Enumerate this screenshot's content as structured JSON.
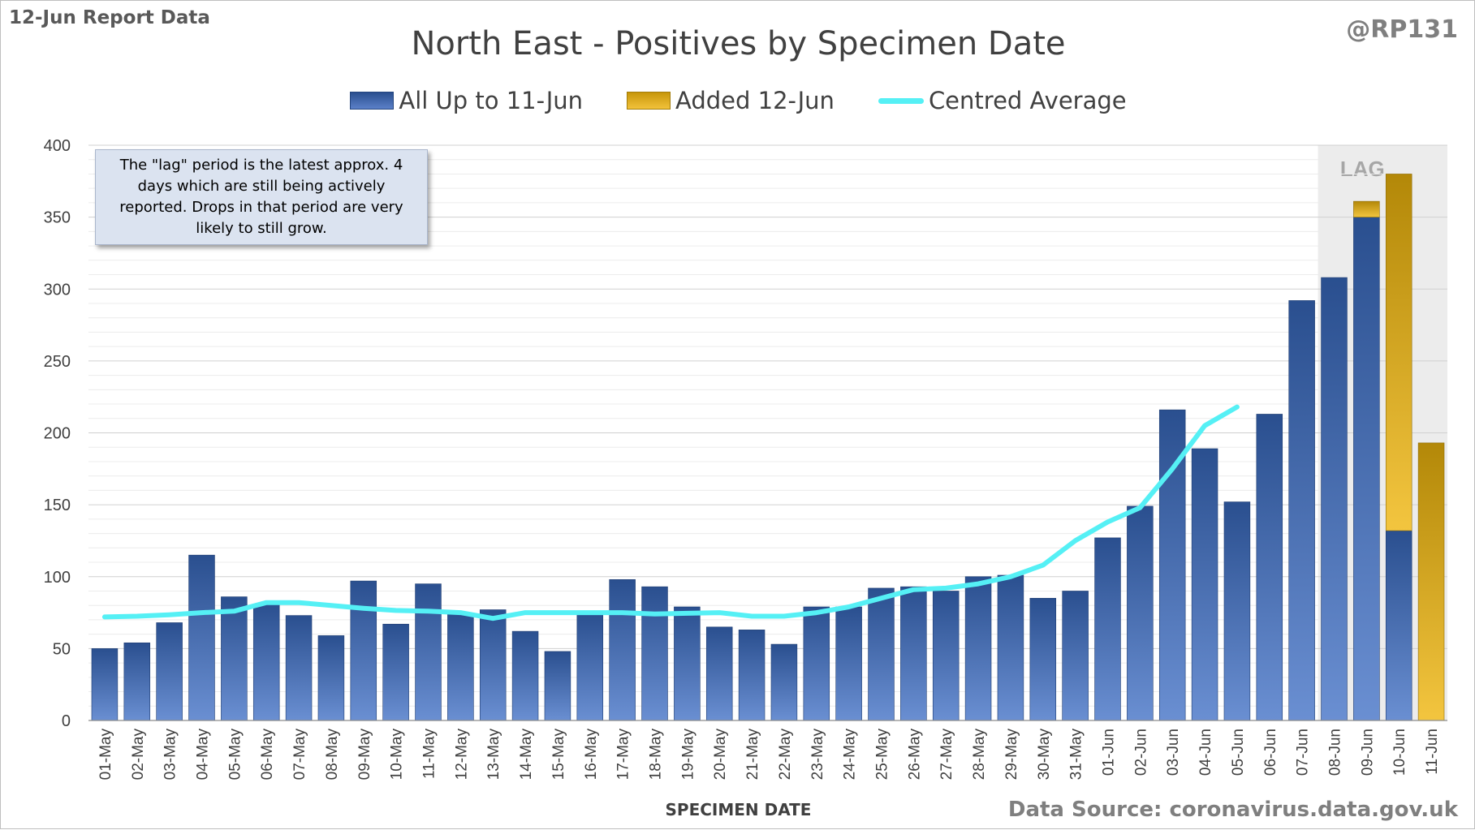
{
  "report_label": "12-Jun Report Data",
  "handle": "@RP131",
  "data_source": "Data Source: coronavirus.data.gov.uk",
  "colors": {
    "blue_top": "#2a4f8f",
    "blue_bottom": "#6a8fd2",
    "gold_top": "#b38808",
    "gold_bottom": "#f3c53f",
    "line": "#55f0f5",
    "lag_shade": "#ececec"
  },
  "lag_note": "The \"lag\" period is the latest approx. 4 days which are still being actively reported.  Drops in that period are very likely to still grow.",
  "chart_data": {
    "type": "bar",
    "title": "North East - Positives by Specimen Date",
    "xlabel": "SPECIMEN DATE",
    "ylabel": "",
    "ylim": [
      0,
      400
    ],
    "yticks": [
      0,
      50,
      100,
      150,
      200,
      250,
      300,
      350,
      400
    ],
    "grid": true,
    "legend_position": "top-center",
    "legend": [
      "All Up to 11-Jun",
      "Added 12-Jun",
      "Centred Average"
    ],
    "lag_label": "LAG",
    "lag_categories": [
      "08-Jun",
      "09-Jun",
      "10-Jun",
      "11-Jun"
    ],
    "categories": [
      "01-May",
      "02-May",
      "03-May",
      "04-May",
      "05-May",
      "06-May",
      "07-May",
      "08-May",
      "09-May",
      "10-May",
      "11-May",
      "12-May",
      "13-May",
      "14-May",
      "15-May",
      "16-May",
      "17-May",
      "18-May",
      "19-May",
      "20-May",
      "21-May",
      "22-May",
      "23-May",
      "24-May",
      "25-May",
      "26-May",
      "27-May",
      "28-May",
      "29-May",
      "30-May",
      "31-May",
      "01-Jun",
      "02-Jun",
      "03-Jun",
      "04-Jun",
      "05-Jun",
      "06-Jun",
      "07-Jun",
      "08-Jun",
      "09-Jun",
      "10-Jun",
      "11-Jun"
    ],
    "series": [
      {
        "name": "All Up to 11-Jun",
        "values": [
          50,
          54,
          68,
          115,
          86,
          81,
          73,
          59,
          97,
          67,
          95,
          74,
          77,
          62,
          48,
          74,
          98,
          93,
          79,
          65,
          63,
          53,
          79,
          79,
          92,
          93,
          90,
          100,
          101,
          85,
          90,
          127,
          149,
          216,
          189,
          152,
          213,
          292,
          308,
          350,
          132,
          0
        ]
      },
      {
        "name": "Added 12-Jun",
        "values": [
          0,
          0,
          0,
          0,
          0,
          0,
          0,
          0,
          0,
          0,
          0,
          0,
          0,
          0,
          0,
          0,
          0,
          0,
          0,
          0,
          0,
          0,
          0,
          0,
          0,
          0,
          0,
          0,
          0,
          0,
          0,
          0,
          0,
          0,
          0,
          0,
          0,
          0,
          0,
          11,
          248,
          193
        ]
      },
      {
        "name": "Centred Average",
        "values": [
          72,
          72.5,
          73.5,
          75,
          76,
          82,
          82,
          80,
          78,
          76.5,
          76,
          75,
          71,
          75,
          75,
          75,
          75,
          74,
          74.5,
          75,
          72.5,
          72.5,
          75,
          79,
          85,
          91,
          92,
          95,
          100,
          108,
          125,
          138,
          148,
          175,
          205,
          218,
          null,
          null,
          null,
          null,
          null,
          null
        ]
      }
    ]
  }
}
